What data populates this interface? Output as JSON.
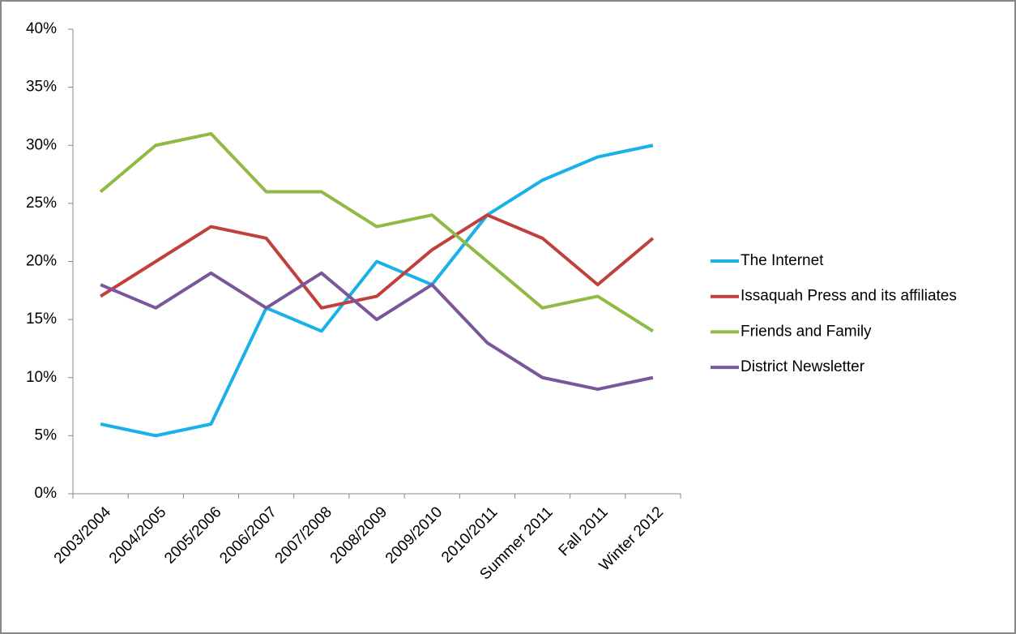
{
  "chart_data": {
    "type": "line",
    "categories": [
      "2003/2004",
      "2004/2005",
      "2005/2006",
      "2006/2007",
      "2007/2008",
      "2008/2009",
      "2009/2010",
      "2010/2011",
      "Summer 2011",
      "Fall 2011",
      "Winter 2012"
    ],
    "series": [
      {
        "name": "The Internet",
        "color": "#1ab0e8",
        "values": [
          6,
          5,
          6,
          16,
          14,
          20,
          18,
          24,
          27,
          29,
          30
        ]
      },
      {
        "name": "Issaquah Press and its affiliates",
        "color": "#c0413c",
        "values": [
          17,
          20,
          23,
          22,
          16,
          17,
          21,
          24,
          22,
          18,
          22
        ]
      },
      {
        "name": "Friends and Family",
        "color": "#8fba44",
        "values": [
          26,
          30,
          31,
          26,
          26,
          23,
          24,
          20,
          16,
          17,
          14
        ]
      },
      {
        "name": "District Newsletter",
        "color": "#7a579c",
        "values": [
          18,
          16,
          19,
          16,
          19,
          15,
          18,
          13,
          10,
          9,
          10
        ]
      }
    ],
    "ylim": [
      0,
      40
    ],
    "yticks": [
      {
        "value": 0,
        "label": "0%"
      },
      {
        "value": 5,
        "label": "5%"
      },
      {
        "value": 10,
        "label": "10%"
      },
      {
        "value": 15,
        "label": "15%"
      },
      {
        "value": 20,
        "label": "20%"
      },
      {
        "value": 25,
        "label": "25%"
      },
      {
        "value": 30,
        "label": "30%"
      },
      {
        "value": 35,
        "label": "35%"
      },
      {
        "value": 40,
        "label": "40%"
      }
    ],
    "legend": "right"
  }
}
